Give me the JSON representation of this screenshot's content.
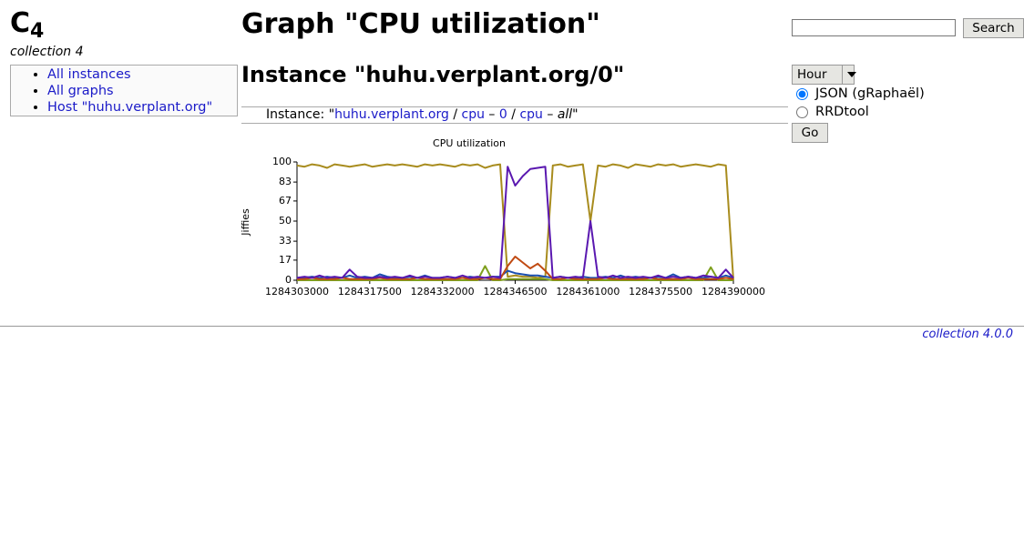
{
  "logo": {
    "letter": "C",
    "sub": "4"
  },
  "subtitle": "collection 4",
  "nav": [
    "All instances",
    "All graphs",
    "Host \"huhu.verplant.org\""
  ],
  "title": "Graph \"CPU utilization\"",
  "instance": "Instance \"huhu.verplant.org/0\"",
  "breadcrumb": [
    {
      "text": "Instance: \""
    },
    {
      "text": "huhu.verplant.org",
      "link": true
    },
    {
      "text": " / "
    },
    {
      "text": "cpu",
      "link": true
    },
    {
      "text": " – "
    },
    {
      "text": "0",
      "link": true
    },
    {
      "text": " / "
    },
    {
      "text": "cpu",
      "link": true
    },
    {
      "text": " – "
    },
    {
      "text": "all",
      "italic": true
    },
    {
      "text": "\""
    }
  ],
  "search": {
    "button": "Search"
  },
  "options": {
    "timespan": "Hour",
    "formats": [
      "JSON (gRaphaël)",
      "RRDtool"
    ],
    "checked": 0,
    "go": "Go"
  },
  "footer": "collection 4.0.0",
  "chart_data": {
    "type": "line",
    "title": "CPU utilization",
    "y_label": "Jiffies",
    "xlim": [
      1284303000,
      1284390000
    ],
    "xticks": [
      1284303000,
      1284317500,
      1284332000,
      1284346500,
      1284361000,
      1284375500,
      1284390000
    ],
    "ylim": [
      0,
      100
    ],
    "yticks": [
      0,
      17,
      33,
      50,
      67,
      83,
      100
    ],
    "x": [
      1284303000,
      1284304500,
      1284306000,
      1284307500,
      1284309000,
      1284310500,
      1284312000,
      1284313500,
      1284315000,
      1284316500,
      1284318000,
      1284319500,
      1284321000,
      1284322500,
      1284324000,
      1284325500,
      1284327000,
      1284328500,
      1284330000,
      1284331500,
      1284333000,
      1284334500,
      1284336000,
      1284337500,
      1284339000,
      1284340500,
      1284342000,
      1284343500,
      1284345000,
      1284346500,
      1284348000,
      1284349500,
      1284351000,
      1284352500,
      1284354000,
      1284355500,
      1284357000,
      1284358500,
      1284360000,
      1284361500,
      1284363000,
      1284364500,
      1284366000,
      1284367500,
      1284369000,
      1284370500,
      1284372000,
      1284373500,
      1284375000,
      1284376500,
      1284378000,
      1284379500,
      1284381000,
      1284382500,
      1284384000,
      1284385500,
      1284387000,
      1284388500,
      1284390000
    ],
    "series": [
      {
        "color": "#a88c1e",
        "values": [
          97,
          96,
          98,
          97,
          95,
          98,
          97,
          96,
          97,
          98,
          96,
          97,
          98,
          97,
          98,
          97,
          96,
          98,
          97,
          98,
          97,
          96,
          98,
          97,
          98,
          95,
          97,
          98,
          3,
          4,
          3,
          3,
          2,
          3,
          97,
          98,
          96,
          97,
          98,
          50,
          97,
          96,
          98,
          97,
          95,
          98,
          97,
          96,
          98,
          97,
          98,
          96,
          97,
          98,
          97,
          96,
          98,
          97,
          0
        ]
      },
      {
        "color": "#7fa01e",
        "values": [
          0,
          0,
          0,
          0,
          0,
          0,
          0,
          0,
          0,
          0,
          0,
          0,
          0,
          0,
          0,
          0,
          0,
          0,
          0,
          0,
          0,
          0,
          0,
          0,
          0,
          12,
          0,
          0,
          1,
          1,
          1,
          1,
          1,
          1,
          0,
          0,
          0,
          0,
          0,
          0,
          0,
          0,
          0,
          0,
          0,
          0,
          0,
          0,
          0,
          0,
          0,
          0,
          0,
          0,
          0,
          11,
          0,
          0,
          0
        ]
      },
      {
        "color": "#1a4fb0",
        "values": [
          2,
          2,
          3,
          2,
          3,
          2,
          2,
          4,
          2,
          3,
          2,
          5,
          3,
          2,
          2,
          3,
          2,
          4,
          2,
          2,
          3,
          2,
          2,
          3,
          2,
          2,
          3,
          3,
          8,
          6,
          5,
          4,
          4,
          3,
          2,
          3,
          2,
          2,
          3,
          2,
          2,
          3,
          2,
          4,
          2,
          3,
          2,
          2,
          3,
          2,
          5,
          2,
          3,
          2,
          2,
          3,
          2,
          4,
          2
        ]
      },
      {
        "color": "#c04a12",
        "values": [
          1,
          1,
          2,
          1,
          1,
          1,
          2,
          1,
          1,
          1,
          1,
          2,
          1,
          1,
          1,
          1,
          2,
          1,
          1,
          1,
          1,
          1,
          2,
          1,
          1,
          2,
          1,
          1,
          12,
          20,
          15,
          10,
          14,
          8,
          1,
          1,
          2,
          1,
          1,
          1,
          1,
          2,
          1,
          1,
          1,
          1,
          1,
          2,
          1,
          1,
          1,
          1,
          2,
          1,
          1,
          1,
          1,
          2,
          1
        ]
      },
      {
        "color": "#5a18b0",
        "values": [
          2,
          3,
          2,
          4,
          2,
          3,
          2,
          9,
          3,
          2,
          2,
          3,
          2,
          3,
          2,
          4,
          2,
          3,
          2,
          2,
          3,
          2,
          4,
          2,
          3,
          2,
          3,
          2,
          96,
          80,
          88,
          94,
          95,
          96,
          2,
          3,
          2,
          3,
          2,
          50,
          3,
          2,
          4,
          2,
          3,
          2,
          3,
          2,
          4,
          2,
          3,
          2,
          3,
          2,
          4,
          3,
          2,
          9,
          2
        ]
      }
    ]
  }
}
